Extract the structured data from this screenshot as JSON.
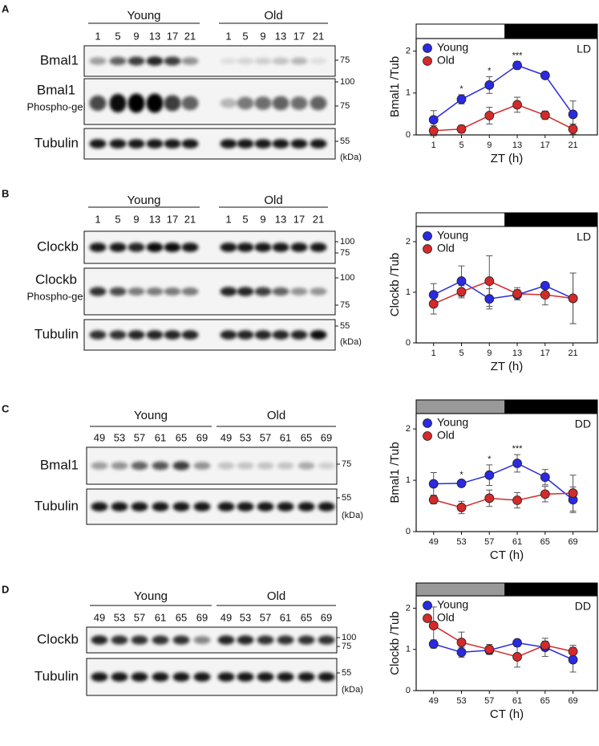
{
  "blots": [
    {
      "panel": "A",
      "groups": [
        {
          "name": "Young",
          "lanes": [
            "1",
            "5",
            "9",
            "13",
            "17",
            "21"
          ]
        },
        {
          "name": "Old",
          "lanes": [
            "1",
            "5",
            "9",
            "13",
            "17",
            "21"
          ]
        }
      ],
      "rows": [
        {
          "label": "Bmal1",
          "markers": [
            "75"
          ]
        },
        {
          "label": "Bmal1",
          "sublabel": "Phospho-gel",
          "markers": [
            "100",
            "75"
          ]
        },
        {
          "label": "Tubulin",
          "markers": [
            "55"
          ]
        }
      ],
      "unit": "(kDa)"
    },
    {
      "panel": "B",
      "groups": [
        {
          "name": "Young",
          "lanes": [
            "1",
            "5",
            "9",
            "13",
            "17",
            "21"
          ]
        },
        {
          "name": "Old",
          "lanes": [
            "1",
            "5",
            "9",
            "13",
            "17",
            "21"
          ]
        }
      ],
      "rows": [
        {
          "label": "Clockb",
          "markers": [
            "100",
            "75"
          ]
        },
        {
          "label": "Clockb",
          "sublabel": "Phospho-gel",
          "markers": [
            "100",
            "75"
          ]
        },
        {
          "label": "Tubulin",
          "markers": [
            "55"
          ]
        }
      ],
      "unit": "(kDa)"
    },
    {
      "panel": "C",
      "groups": [
        {
          "name": "Young",
          "lanes": [
            "49",
            "53",
            "57",
            "61",
            "65",
            "69"
          ]
        },
        {
          "name": "Old",
          "lanes": [
            "49",
            "53",
            "57",
            "61",
            "65",
            "69"
          ]
        }
      ],
      "rows": [
        {
          "label": "Bmal1",
          "markers": [
            "75"
          ]
        },
        {
          "label": "Tubulin",
          "markers": [
            "55"
          ]
        }
      ],
      "unit": "(kDa)"
    },
    {
      "panel": "D",
      "groups": [
        {
          "name": "Young",
          "lanes": [
            "49",
            "53",
            "57",
            "61",
            "65",
            "69"
          ]
        },
        {
          "name": "Old",
          "lanes": [
            "49",
            "53",
            "57",
            "61",
            "65",
            "69"
          ]
        }
      ],
      "rows": [
        {
          "label": "Clockb",
          "markers": [
            "100",
            "75"
          ]
        },
        {
          "label": "Tubulin",
          "markers": [
            "55"
          ]
        }
      ],
      "unit": "(kDa)"
    }
  ],
  "chart_data": [
    {
      "type": "line",
      "x": [
        1,
        5,
        9,
        13,
        17,
        21
      ],
      "xlim": [
        -1.5,
        24.5
      ],
      "xlabel": "ZT (h)",
      "ylabel": "Bmal1 /Tub",
      "ylim": [
        0,
        2.3
      ],
      "yticks": [
        0,
        1,
        2
      ],
      "annotation": "LD",
      "legend": "upper left",
      "light_colors": [
        "#ffffff",
        "#000000"
      ],
      "significance": [
        null,
        "*",
        "*",
        "***",
        null,
        null
      ],
      "series": [
        {
          "name": "Young",
          "color": "#2a2ae0",
          "values": [
            0.36,
            0.85,
            1.19,
            1.66,
            1.42,
            0.49
          ],
          "errors": [
            0.22,
            0.11,
            0.2,
            0.09,
            0.03,
            0.32
          ]
        },
        {
          "name": "Old",
          "color": "#d42a2a",
          "values": [
            0.1,
            0.14,
            0.46,
            0.72,
            0.47,
            0.14
          ],
          "errors": [
            0.12,
            0.09,
            0.2,
            0.18,
            0.1,
            0.12
          ]
        }
      ]
    },
    {
      "type": "line",
      "x": [
        1,
        5,
        9,
        13,
        17,
        21
      ],
      "xlim": [
        -1.5,
        24.5
      ],
      "xlabel": "ZT (h)",
      "ylabel": "Clockb /Tub",
      "ylim": [
        0,
        2.3
      ],
      "yticks": [
        0,
        1,
        2
      ],
      "annotation": "LD",
      "legend": "upper left",
      "light_colors": [
        "#ffffff",
        "#000000"
      ],
      "series": [
        {
          "name": "Young",
          "color": "#2a2ae0",
          "values": [
            0.95,
            1.22,
            0.87,
            0.95,
            1.13,
            0.88
          ],
          "errors": [
            0.22,
            0.3,
            0.2,
            0.1,
            0.05,
            0.5
          ]
        },
        {
          "name": "Old",
          "color": "#d42a2a",
          "values": [
            0.77,
            1.01,
            1.22,
            0.97,
            0.95,
            0.88
          ],
          "errors": [
            0.2,
            0.12,
            0.5,
            0.12,
            0.2,
            0.5
          ]
        }
      ]
    },
    {
      "type": "line",
      "x": [
        49,
        53,
        57,
        61,
        65,
        69
      ],
      "xlim": [
        46.5,
        72.5
      ],
      "xlabel": "CT (h)",
      "ylabel": "Bmal1 /Tub",
      "ylim": [
        0,
        2.3
      ],
      "yticks": [
        0,
        1,
        2
      ],
      "annotation": "DD",
      "legend": "upper left",
      "light_colors": [
        "#999999",
        "#000000"
      ],
      "significance": [
        null,
        "*",
        "*",
        "***",
        null,
        null
      ],
      "series": [
        {
          "name": "Young",
          "color": "#2a2ae0",
          "values": [
            0.93,
            0.94,
            1.1,
            1.33,
            1.06,
            0.62
          ],
          "errors": [
            0.22,
            0.05,
            0.2,
            0.17,
            0.15,
            0.25
          ]
        },
        {
          "name": "Old",
          "color": "#d42a2a",
          "values": [
            0.62,
            0.47,
            0.65,
            0.61,
            0.73,
            0.75
          ],
          "errors": [
            0.08,
            0.12,
            0.16,
            0.15,
            0.15,
            0.35
          ]
        }
      ]
    },
    {
      "type": "line",
      "x": [
        49,
        53,
        57,
        61,
        65,
        69
      ],
      "xlim": [
        46.5,
        72.5
      ],
      "xlabel": "CT (h)",
      "ylabel": "Clockb /Tub",
      "ylim": [
        0,
        2.3
      ],
      "yticks": [
        0,
        1,
        2
      ],
      "annotation": "DD",
      "legend": "upper left",
      "light_colors": [
        "#999999",
        "#000000"
      ],
      "series": [
        {
          "name": "Young",
          "color": "#2a2ae0",
          "values": [
            1.13,
            0.93,
            0.98,
            1.16,
            1.05,
            0.75
          ],
          "errors": [
            0.1,
            0.12,
            0.1,
            0.05,
            0.22,
            0.3
          ]
        },
        {
          "name": "Old",
          "color": "#d42a2a",
          "values": [
            1.58,
            1.17,
            1.0,
            0.82,
            1.1,
            0.95
          ],
          "errors": [
            0.45,
            0.25,
            0.12,
            0.25,
            0.1,
            0.15
          ]
        }
      ]
    }
  ]
}
